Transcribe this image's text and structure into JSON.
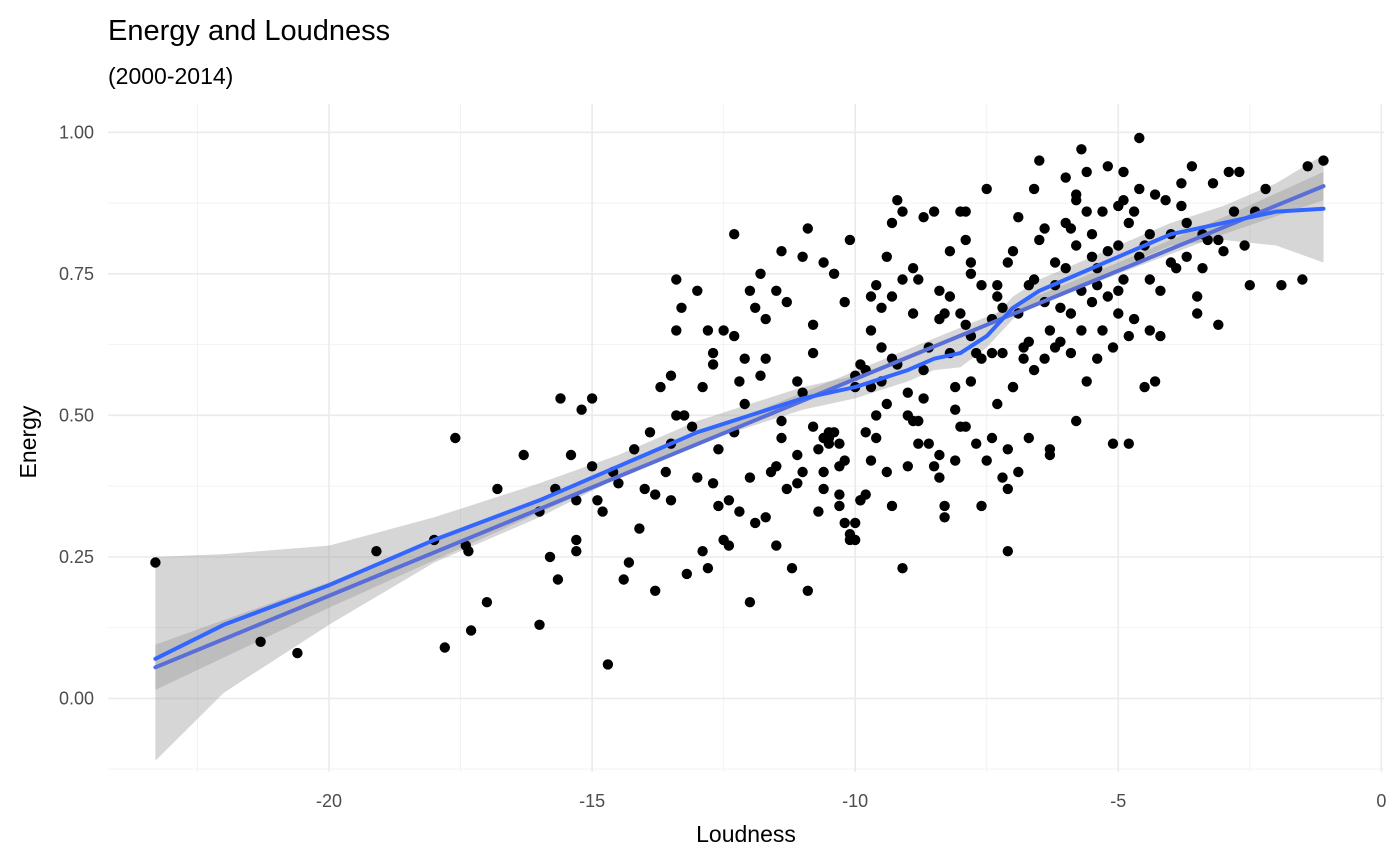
{
  "chart_data": {
    "type": "scatter",
    "title": "Energy and Loudness",
    "subtitle": "(2000-2014)",
    "xlabel": "Loudness",
    "ylabel": "Energy",
    "xlim": [
      -24.2,
      0.05
    ],
    "ylim": [
      -0.13,
      1.05
    ],
    "x_ticks": [
      {
        "value": -20,
        "label": "-20"
      },
      {
        "value": -15,
        "label": "-15"
      },
      {
        "value": -10,
        "label": "-10"
      },
      {
        "value": -5,
        "label": "-5"
      },
      {
        "value": 0,
        "label": "0"
      }
    ],
    "y_ticks": [
      {
        "value": 0,
        "label": "0.00"
      },
      {
        "value": 0.25,
        "label": "0.25"
      },
      {
        "value": 0.5,
        "label": "0.50"
      },
      {
        "value": 0.75,
        "label": "0.75"
      },
      {
        "value": 1.0,
        "label": "1.00"
      }
    ],
    "x_minor": [
      -22.5,
      -17.5,
      -12.5,
      -7.5,
      -2.5
    ],
    "y_minor": [
      -0.125,
      0.125,
      0.375,
      0.625,
      0.875
    ],
    "grid": true,
    "legend": "none",
    "colors": {
      "points": "#000000",
      "loess_line": "#3366ff",
      "lm_line": "#5a6ed8",
      "ribbon": "#999999",
      "grid": "#ebebeb",
      "tick_text": "#4d4d4d"
    },
    "points": [
      [
        -23.3,
        0.24
      ],
      [
        -21.3,
        0.1
      ],
      [
        -20.6,
        0.08
      ],
      [
        -19.1,
        0.26
      ],
      [
        -18.0,
        0.28
      ],
      [
        -17.8,
        0.09
      ],
      [
        -17.6,
        0.46
      ],
      [
        -17.4,
        0.27
      ],
      [
        -17.35,
        0.26
      ],
      [
        -17.3,
        0.12
      ],
      [
        -17.0,
        0.17
      ],
      [
        -16.8,
        0.37
      ],
      [
        -16.3,
        0.43
      ],
      [
        -16.0,
        0.33
      ],
      [
        -16.0,
        0.13
      ],
      [
        -15.8,
        0.25
      ],
      [
        -15.7,
        0.37
      ],
      [
        -15.65,
        0.21
      ],
      [
        -15.6,
        0.53
      ],
      [
        -15.4,
        0.43
      ],
      [
        -15.3,
        0.35
      ],
      [
        -15.3,
        0.26
      ],
      [
        -15.3,
        0.28
      ],
      [
        -15.2,
        0.51
      ],
      [
        -15.0,
        0.53
      ],
      [
        -15.0,
        0.41
      ],
      [
        -14.9,
        0.35
      ],
      [
        -14.7,
        0.06
      ],
      [
        -14.6,
        0.4
      ],
      [
        -14.5,
        0.38
      ],
      [
        -14.4,
        0.21
      ],
      [
        -14.3,
        0.24
      ],
      [
        -14.2,
        0.44
      ],
      [
        -14.1,
        0.3
      ],
      [
        -14.0,
        0.37
      ],
      [
        -13.8,
        0.19
      ],
      [
        -13.8,
        0.36
      ],
      [
        -13.7,
        0.55
      ],
      [
        -13.6,
        0.4
      ],
      [
        -13.5,
        0.45
      ],
      [
        -13.5,
        0.35
      ],
      [
        -13.5,
        0.57
      ],
      [
        -13.4,
        0.5
      ],
      [
        -13.4,
        0.74
      ],
      [
        -13.4,
        0.65
      ],
      [
        -13.3,
        0.69
      ],
      [
        -13.25,
        0.5
      ],
      [
        -13.2,
        0.22
      ],
      [
        -13.1,
        0.48
      ],
      [
        -13.0,
        0.39
      ],
      [
        -12.9,
        0.26
      ],
      [
        -12.9,
        0.55
      ],
      [
        -12.8,
        0.23
      ],
      [
        -12.8,
        0.65
      ],
      [
        -12.7,
        0.61
      ],
      [
        -12.7,
        0.59
      ],
      [
        -12.7,
        0.38
      ],
      [
        -12.6,
        0.34
      ],
      [
        -12.5,
        0.65
      ],
      [
        -12.5,
        0.28
      ],
      [
        -12.4,
        0.35
      ],
      [
        -12.4,
        0.27
      ],
      [
        -12.3,
        0.47
      ],
      [
        -12.3,
        0.64
      ],
      [
        -12.2,
        0.56
      ],
      [
        -12.1,
        0.52
      ],
      [
        -12.1,
        0.6
      ],
      [
        -12.0,
        0.17
      ],
      [
        -12.0,
        0.72
      ],
      [
        -12.0,
        0.39
      ],
      [
        -11.9,
        0.31
      ],
      [
        -11.9,
        0.69
      ],
      [
        -11.8,
        0.57
      ],
      [
        -11.8,
        0.75
      ],
      [
        -11.7,
        0.32
      ],
      [
        -11.7,
        0.67
      ],
      [
        -11.6,
        0.4
      ],
      [
        -11.5,
        0.41
      ],
      [
        -11.5,
        0.72
      ],
      [
        -11.4,
        0.46
      ],
      [
        -11.4,
        0.49
      ],
      [
        -11.3,
        0.37
      ],
      [
        -11.3,
        0.7
      ],
      [
        -11.2,
        0.23
      ],
      [
        -11.1,
        0.43
      ],
      [
        -11.1,
        0.38
      ],
      [
        -11.0,
        0.54
      ],
      [
        -11.0,
        0.4
      ],
      [
        -11.0,
        0.78
      ],
      [
        -10.9,
        0.83
      ],
      [
        -10.9,
        0.19
      ],
      [
        -10.8,
        0.61
      ],
      [
        -10.8,
        0.48
      ],
      [
        -10.7,
        0.44
      ],
      [
        -10.6,
        0.46
      ],
      [
        -10.6,
        0.37
      ],
      [
        -10.6,
        0.4
      ],
      [
        -10.5,
        0.47
      ],
      [
        -10.5,
        0.46
      ],
      [
        -10.5,
        0.45
      ],
      [
        -10.4,
        0.75
      ],
      [
        -10.4,
        0.47
      ],
      [
        -10.3,
        0.41
      ],
      [
        -10.3,
        0.34
      ],
      [
        -10.3,
        0.45
      ],
      [
        -10.3,
        0.36
      ],
      [
        -10.2,
        0.31
      ],
      [
        -10.2,
        0.42
      ],
      [
        -10.1,
        0.29
      ],
      [
        -10.1,
        0.28
      ],
      [
        -10.0,
        0.28
      ],
      [
        -10.0,
        0.31
      ],
      [
        -10.0,
        0.55
      ],
      [
        -10.0,
        0.57
      ],
      [
        -9.9,
        0.35
      ],
      [
        -9.9,
        0.59
      ],
      [
        -9.9,
        0.35
      ],
      [
        -9.8,
        0.36
      ],
      [
        -9.8,
        0.47
      ],
      [
        -9.8,
        0.58
      ],
      [
        -9.7,
        0.65
      ],
      [
        -9.7,
        0.55
      ],
      [
        -9.7,
        0.42
      ],
      [
        -9.6,
        0.46
      ],
      [
        -9.6,
        0.73
      ],
      [
        -9.5,
        0.69
      ],
      [
        -9.5,
        0.62
      ],
      [
        -9.5,
        0.56
      ],
      [
        -9.4,
        0.78
      ],
      [
        -9.4,
        0.52
      ],
      [
        -9.3,
        0.34
      ],
      [
        -9.3,
        0.84
      ],
      [
        -9.3,
        0.71
      ],
      [
        -9.3,
        0.6
      ],
      [
        -9.2,
        0.59
      ],
      [
        -9.2,
        0.88
      ],
      [
        -9.1,
        0.23
      ],
      [
        -9.1,
        0.74
      ],
      [
        -9.1,
        0.86
      ],
      [
        -9.0,
        0.5
      ],
      [
        -9.0,
        0.54
      ],
      [
        -9.0,
        0.41
      ],
      [
        -8.9,
        0.68
      ],
      [
        -8.9,
        0.49
      ],
      [
        -8.8,
        0.49
      ],
      [
        -8.8,
        0.74
      ],
      [
        -8.7,
        0.58
      ],
      [
        -8.7,
        0.85
      ],
      [
        -8.6,
        0.62
      ],
      [
        -8.6,
        0.45
      ],
      [
        -8.5,
        0.86
      ],
      [
        -8.5,
        0.41
      ],
      [
        -8.4,
        0.67
      ],
      [
        -8.4,
        0.43
      ],
      [
        -8.4,
        0.39
      ],
      [
        -8.3,
        0.68
      ],
      [
        -8.3,
        0.34
      ],
      [
        -8.3,
        0.32
      ],
      [
        -8.2,
        0.61
      ],
      [
        -8.2,
        0.79
      ],
      [
        -8.1,
        0.55
      ],
      [
        -8.1,
        0.42
      ],
      [
        -8.0,
        0.48
      ],
      [
        -8.0,
        0.86
      ],
      [
        -8.0,
        0.68
      ],
      [
        -7.9,
        0.66
      ],
      [
        -7.9,
        0.86
      ],
      [
        -7.9,
        0.48
      ],
      [
        -7.8,
        0.77
      ],
      [
        -7.8,
        0.56
      ],
      [
        -7.8,
        0.75
      ],
      [
        -7.7,
        0.45
      ],
      [
        -7.7,
        0.61
      ],
      [
        -7.6,
        0.73
      ],
      [
        -7.6,
        0.34
      ],
      [
        -7.6,
        0.6
      ],
      [
        -7.5,
        0.42
      ],
      [
        -7.5,
        0.9
      ],
      [
        -7.4,
        0.61
      ],
      [
        -7.4,
        0.46
      ],
      [
        -7.3,
        0.71
      ],
      [
        -7.3,
        0.73
      ],
      [
        -7.3,
        0.52
      ],
      [
        -7.2,
        0.69
      ],
      [
        -7.2,
        0.39
      ],
      [
        -7.1,
        0.37
      ],
      [
        -7.1,
        0.44
      ],
      [
        -7.1,
        0.26
      ],
      [
        -7.0,
        0.55
      ],
      [
        -7.0,
        0.55
      ],
      [
        -7.0,
        0.79
      ],
      [
        -6.9,
        0.85
      ],
      [
        -6.9,
        0.4
      ],
      [
        -6.8,
        0.62
      ],
      [
        -6.8,
        0.6
      ],
      [
        -6.7,
        0.63
      ],
      [
        -6.7,
        0.46
      ],
      [
        -6.6,
        0.58
      ],
      [
        -6.6,
        0.9
      ],
      [
        -6.5,
        0.95
      ],
      [
        -6.5,
        0.81
      ],
      [
        -6.4,
        0.6
      ],
      [
        -6.4,
        0.7
      ],
      [
        -6.3,
        0.43
      ],
      [
        -6.3,
        0.65
      ],
      [
        -6.3,
        0.44
      ],
      [
        -6.2,
        0.62
      ],
      [
        -6.2,
        0.73
      ],
      [
        -6.1,
        0.63
      ],
      [
        -6.0,
        0.84
      ],
      [
        -6.0,
        0.76
      ],
      [
        -6.0,
        0.92
      ],
      [
        -5.9,
        0.68
      ],
      [
        -5.9,
        0.61
      ],
      [
        -5.8,
        0.8
      ],
      [
        -5.8,
        0.49
      ],
      [
        -5.8,
        0.88
      ],
      [
        -5.7,
        0.72
      ],
      [
        -5.7,
        0.97
      ],
      [
        -5.6,
        0.86
      ],
      [
        -5.6,
        0.56
      ],
      [
        -5.6,
        0.93
      ],
      [
        -5.5,
        0.7
      ],
      [
        -5.5,
        0.82
      ],
      [
        -5.4,
        0.76
      ],
      [
        -5.4,
        0.73
      ],
      [
        -5.3,
        0.65
      ],
      [
        -5.3,
        0.86
      ],
      [
        -5.2,
        0.94
      ],
      [
        -5.2,
        0.79
      ],
      [
        -5.1,
        0.62
      ],
      [
        -5.1,
        0.45
      ],
      [
        -5.0,
        0.8
      ],
      [
        -5.0,
        0.72
      ],
      [
        -5.0,
        0.68
      ],
      [
        -4.9,
        0.88
      ],
      [
        -4.9,
        0.93
      ],
      [
        -4.8,
        0.45
      ],
      [
        -4.8,
        0.64
      ],
      [
        -4.8,
        0.84
      ],
      [
        -4.7,
        0.67
      ],
      [
        -4.7,
        0.86
      ],
      [
        -4.6,
        0.99
      ],
      [
        -4.6,
        0.9
      ],
      [
        -4.5,
        0.55
      ],
      [
        -4.5,
        0.8
      ],
      [
        -4.4,
        0.65
      ],
      [
        -4.4,
        0.82
      ],
      [
        -4.3,
        0.56
      ],
      [
        -4.3,
        0.89
      ],
      [
        -4.2,
        0.72
      ],
      [
        -4.2,
        0.64
      ],
      [
        -4.1,
        0.88
      ],
      [
        -4.0,
        0.82
      ],
      [
        -3.9,
        0.76
      ],
      [
        -3.8,
        0.87
      ],
      [
        -3.8,
        0.91
      ],
      [
        -3.7,
        0.78
      ],
      [
        -3.6,
        0.94
      ],
      [
        -3.5,
        0.71
      ],
      [
        -3.5,
        0.68
      ],
      [
        -3.4,
        0.76
      ],
      [
        -3.3,
        0.81
      ],
      [
        -3.2,
        0.91
      ],
      [
        -3.1,
        0.66
      ],
      [
        -3.1,
        0.81
      ],
      [
        -3.0,
        0.79
      ],
      [
        -2.9,
        0.93
      ],
      [
        -2.8,
        0.86
      ],
      [
        -2.7,
        0.93
      ],
      [
        -2.6,
        0.8
      ],
      [
        -2.5,
        0.73
      ],
      [
        -2.4,
        0.86
      ],
      [
        -2.2,
        0.9
      ],
      [
        -1.9,
        0.73
      ],
      [
        -1.5,
        0.74
      ],
      [
        -1.4,
        0.94
      ],
      [
        -1.1,
        0.95
      ],
      [
        -14.8,
        0.33
      ],
      [
        -13.9,
        0.47
      ],
      [
        -12.6,
        0.44
      ],
      [
        -11.7,
        0.6
      ],
      [
        -11.1,
        0.56
      ],
      [
        -10.8,
        0.66
      ],
      [
        -10.2,
        0.7
      ],
      [
        -9.6,
        0.5
      ],
      [
        -8.9,
        0.76
      ],
      [
        -8.7,
        0.53
      ],
      [
        -8.2,
        0.71
      ],
      [
        -7.4,
        0.67
      ],
      [
        -6.9,
        0.68
      ],
      [
        -6.6,
        0.74
      ],
      [
        -6.2,
        0.77
      ],
      [
        -5.9,
        0.83
      ],
      [
        -5.5,
        0.78
      ],
      [
        -5.2,
        0.71
      ],
      [
        -4.9,
        0.74
      ],
      [
        -4.6,
        0.78
      ],
      [
        -4.4,
        0.74
      ],
      [
        -4.0,
        0.77
      ],
      [
        -3.7,
        0.84
      ],
      [
        -3.4,
        0.82
      ],
      [
        -12.2,
        0.33
      ],
      [
        -11.5,
        0.27
      ],
      [
        -10.7,
        0.33
      ],
      [
        -9.4,
        0.4
      ],
      [
        -8.8,
        0.45
      ],
      [
        -8.1,
        0.51
      ],
      [
        -7.8,
        0.64
      ],
      [
        -7.2,
        0.61
      ],
      [
        -6.7,
        0.73
      ],
      [
        -6.1,
        0.69
      ],
      [
        -5.7,
        0.65
      ],
      [
        -5.4,
        0.6
      ],
      [
        -13.0,
        0.72
      ],
      [
        -12.3,
        0.82
      ],
      [
        -11.4,
        0.79
      ],
      [
        -10.6,
        0.77
      ],
      [
        -10.1,
        0.81
      ],
      [
        -9.7,
        0.71
      ],
      [
        -8.4,
        0.72
      ],
      [
        -7.9,
        0.81
      ],
      [
        -7.1,
        0.77
      ],
      [
        -6.4,
        0.83
      ],
      [
        -5.8,
        0.89
      ],
      [
        -5.0,
        0.87
      ]
    ],
    "loess_line": [
      [
        -23.3,
        0.07
      ],
      [
        -22.0,
        0.13
      ],
      [
        -20.0,
        0.2
      ],
      [
        -18.0,
        0.28
      ],
      [
        -16.0,
        0.35
      ],
      [
        -14.5,
        0.41
      ],
      [
        -13.0,
        0.47
      ],
      [
        -12.0,
        0.5
      ],
      [
        -11.0,
        0.53
      ],
      [
        -10.0,
        0.55
      ],
      [
        -9.0,
        0.58
      ],
      [
        -8.5,
        0.6
      ],
      [
        -8.0,
        0.61
      ],
      [
        -7.5,
        0.64
      ],
      [
        -7.0,
        0.69
      ],
      [
        -6.5,
        0.72
      ],
      [
        -6.0,
        0.74
      ],
      [
        -5.5,
        0.76
      ],
      [
        -5.0,
        0.78
      ],
      [
        -4.5,
        0.8
      ],
      [
        -4.0,
        0.82
      ],
      [
        -3.0,
        0.84
      ],
      [
        -2.0,
        0.86
      ],
      [
        -1.1,
        0.865
      ]
    ],
    "loess_band_upper": [
      [
        -23.3,
        0.25
      ],
      [
        -22.0,
        0.255
      ],
      [
        -20.0,
        0.27
      ],
      [
        -18.0,
        0.32
      ],
      [
        -16.0,
        0.38
      ],
      [
        -14.5,
        0.43
      ],
      [
        -13.0,
        0.49
      ],
      [
        -12.0,
        0.52
      ],
      [
        -11.0,
        0.55
      ],
      [
        -10.0,
        0.57
      ],
      [
        -9.0,
        0.6
      ],
      [
        -8.5,
        0.62
      ],
      [
        -8.0,
        0.64
      ],
      [
        -7.5,
        0.66
      ],
      [
        -7.0,
        0.71
      ],
      [
        -6.5,
        0.74
      ],
      [
        -6.0,
        0.76
      ],
      [
        -5.5,
        0.78
      ],
      [
        -5.0,
        0.8
      ],
      [
        -4.5,
        0.82
      ],
      [
        -4.0,
        0.84
      ],
      [
        -3.0,
        0.87
      ],
      [
        -2.0,
        0.91
      ],
      [
        -1.1,
        0.96
      ]
    ],
    "loess_band_lower": [
      [
        -23.3,
        -0.11
      ],
      [
        -22.0,
        0.01
      ],
      [
        -20.0,
        0.13
      ],
      [
        -18.0,
        0.24
      ],
      [
        -16.0,
        0.32
      ],
      [
        -14.5,
        0.39
      ],
      [
        -13.0,
        0.45
      ],
      [
        -12.0,
        0.48
      ],
      [
        -11.0,
        0.51
      ],
      [
        -10.0,
        0.53
      ],
      [
        -9.0,
        0.56
      ],
      [
        -8.5,
        0.58
      ],
      [
        -8.0,
        0.585
      ],
      [
        -7.5,
        0.62
      ],
      [
        -7.0,
        0.67
      ],
      [
        -6.5,
        0.7
      ],
      [
        -6.0,
        0.72
      ],
      [
        -5.5,
        0.74
      ],
      [
        -5.0,
        0.76
      ],
      [
        -4.5,
        0.78
      ],
      [
        -4.0,
        0.8
      ],
      [
        -3.0,
        0.81
      ],
      [
        -2.0,
        0.8
      ],
      [
        -1.1,
        0.77
      ]
    ],
    "lm_line": [
      [
        -23.3,
        0.055
      ],
      [
        -1.1,
        0.905
      ]
    ],
    "lm_band_upper": [
      [
        -23.3,
        0.095
      ],
      [
        -20.0,
        0.205
      ],
      [
        -15.0,
        0.39
      ],
      [
        -11.0,
        0.54
      ],
      [
        -8.0,
        0.655
      ],
      [
        -5.0,
        0.77
      ],
      [
        -3.0,
        0.85
      ],
      [
        -1.1,
        0.93
      ]
    ],
    "lm_band_lower": [
      [
        -23.3,
        0.015
      ],
      [
        -20.0,
        0.16
      ],
      [
        -15.0,
        0.37
      ],
      [
        -11.0,
        0.525
      ],
      [
        -8.0,
        0.64
      ],
      [
        -5.0,
        0.75
      ],
      [
        -3.0,
        0.82
      ],
      [
        -1.1,
        0.88
      ]
    ]
  }
}
